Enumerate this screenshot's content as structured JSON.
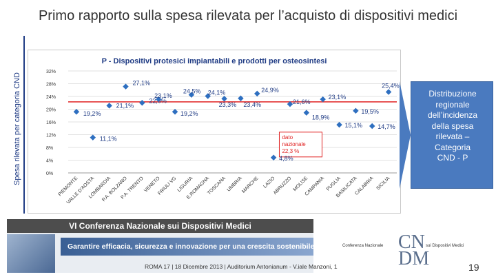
{
  "slide": {
    "title": "Primo rapporto sulla spesa rilevata per l’acquisto di dispositivi medici",
    "vertical_label": "Spesa rilevata per categoria CND",
    "callout_lines": [
      "Distribuzione",
      "regionale",
      "dell’incidenza",
      "della spesa",
      "rilevata –",
      "Categoria",
      "CND - P"
    ],
    "banner_title": "VI Conferenza Nazionale sui Dispositivi Medici",
    "banner_tagline": "Garantire efficacia, sicurezza e innovazione per una crescita sostenibile",
    "banner_footer": "ROMA 17 | 18 Dicembre 2013 | Auditorium Antonianum - V.iale Manzoni, 1",
    "logo_top": "CN",
    "logo_bottom": "DM",
    "logo_left_text": "Conferenza Nazionale",
    "logo_right_text": "sui Dispositivi Medici",
    "page_number": "19"
  },
  "chart_data": {
    "type": "scatter",
    "title": "P - Dispositivi  protesici  impiantabili e prodotti per osteosintesi",
    "categories": [
      "PIEMONTE",
      "VALLE D'AOSTA",
      "LOMBARDIA",
      "P.A. BOLZANO",
      "P.A. TRENTO",
      "VENETO",
      "FRIULI VG",
      "LIGURIA",
      "E.ROMAGNA",
      "TOSCANA",
      "UMBRIA",
      "MARCHE",
      "LAZIO",
      "ABRUZZO",
      "MOLISE",
      "CAMPANIA",
      "PUGLIA",
      "BASILICATA",
      "CALABRIA",
      "SICILIA"
    ],
    "values": [
      19.2,
      11.1,
      21.1,
      27.1,
      22.0,
      23.1,
      19.2,
      24.5,
      24.1,
      23.3,
      23.4,
      24.9,
      4.8,
      21.6,
      18.9,
      23.1,
      15.1,
      19.5,
      14.7,
      25.4
    ],
    "value_labels": [
      "19,2%",
      "11,1%",
      "21,1%",
      "27,1%",
      "22,0%",
      "23,1%",
      "19,2%",
      "24,5%",
      "24,1%",
      "23,3%",
      "23,4%",
      "24,9%",
      "4,8%",
      "21,6%",
      "18,9%",
      "23,1%",
      "15,1%",
      "19,5%",
      "14,7%",
      "25,4%"
    ],
    "yticks": [
      "0%",
      "4%",
      "8%",
      "12%",
      "16%",
      "20%",
      "24%",
      "28%",
      "32%"
    ],
    "ylim": [
      0,
      32
    ],
    "reference_line": {
      "value": 22.3,
      "label_lines": [
        "dato",
        "nazionale",
        "22,3 %"
      ],
      "color": "#e02020"
    },
    "marker_color": "#2e6fc0",
    "grid": true,
    "xlabel": "",
    "ylabel": ""
  }
}
